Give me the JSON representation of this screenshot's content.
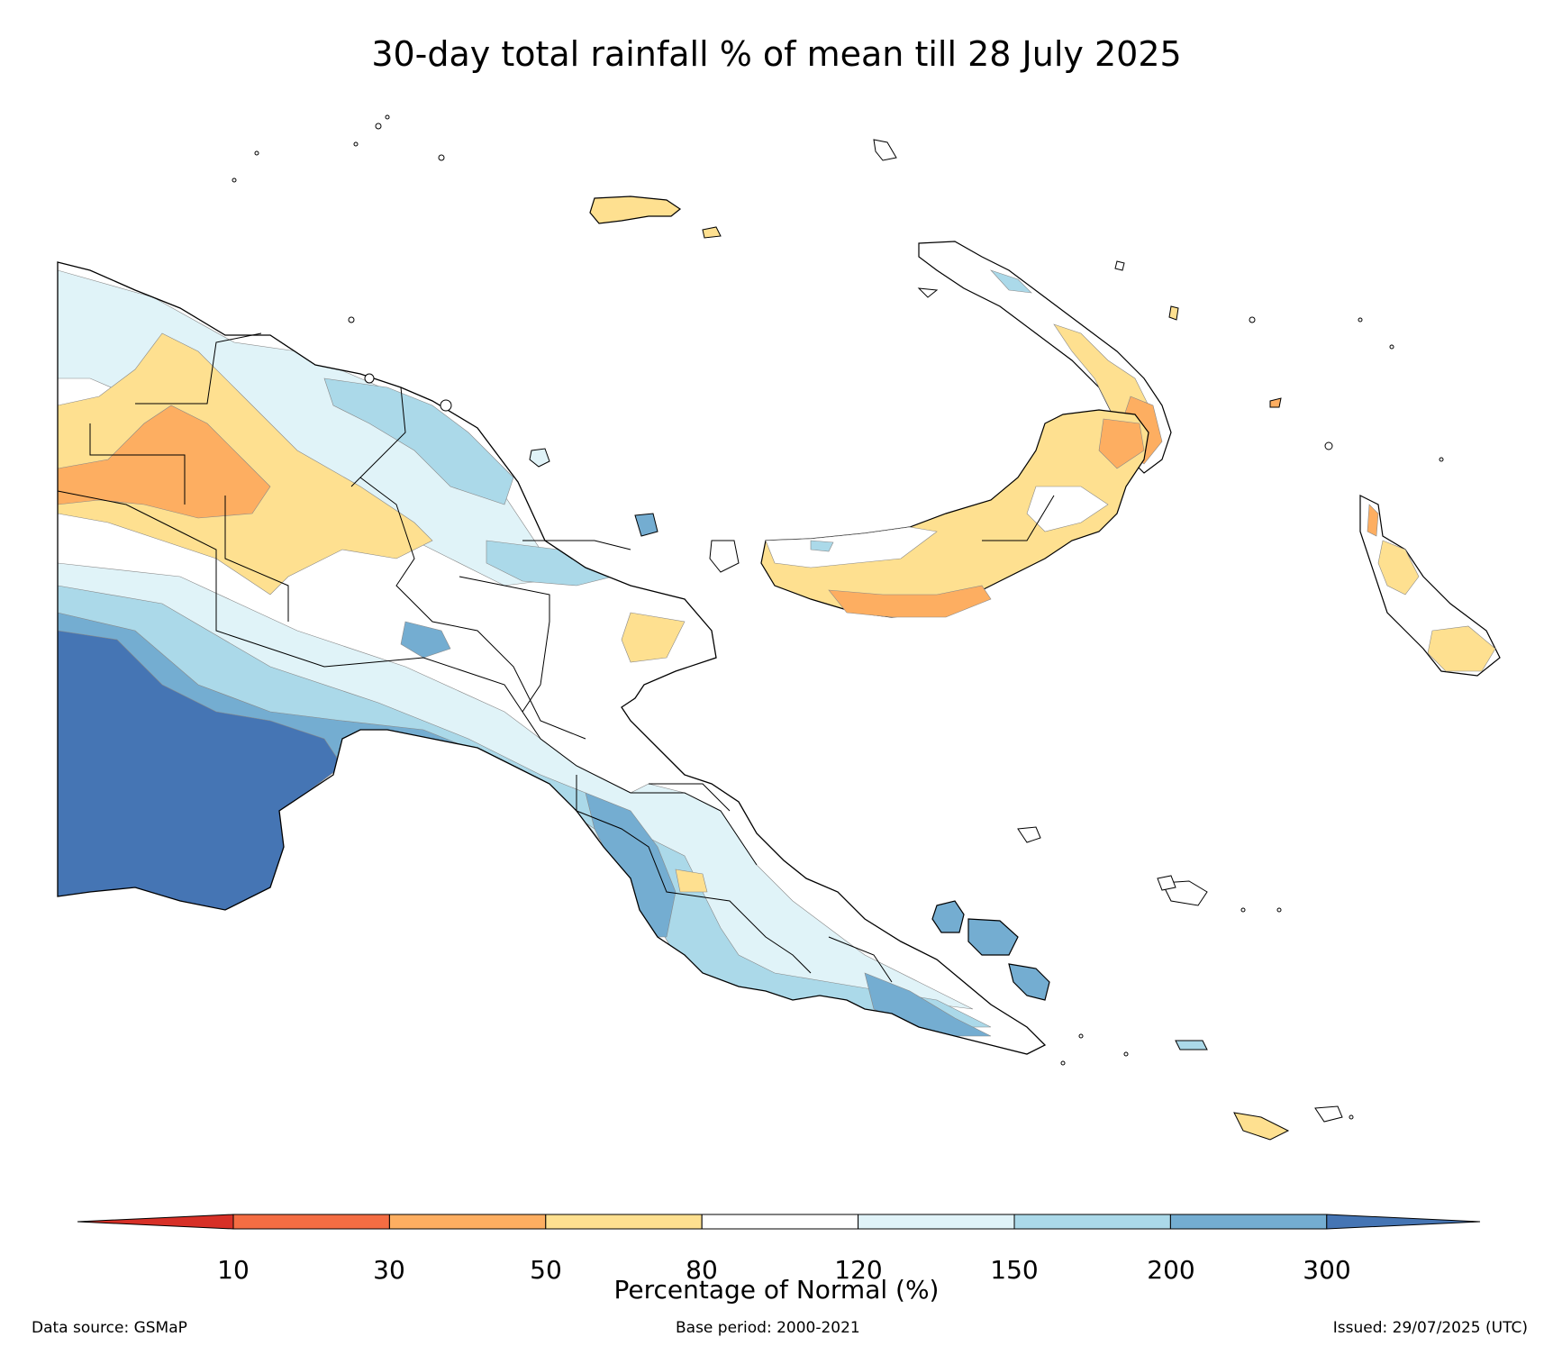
{
  "title": "30-day total rainfall % of mean till 28 July 2025",
  "colorbar": {
    "label": "Percentage of Normal (%)",
    "ticks": [
      "10",
      "30",
      "50",
      "80",
      "120",
      "150",
      "200",
      "300"
    ],
    "classes": [
      {
        "range": "<10",
        "color": "#d73027"
      },
      {
        "range": "10-30",
        "color": "#f46d43"
      },
      {
        "range": "30-50",
        "color": "#fdae61"
      },
      {
        "range": "50-80",
        "color": "#fee090"
      },
      {
        "range": "80-120",
        "color": "#ffffff"
      },
      {
        "range": "120-150",
        "color": "#e0f3f8"
      },
      {
        "range": "150-200",
        "color": "#abd9e9"
      },
      {
        "range": "200-300",
        "color": "#74add1"
      },
      {
        "range": ">300",
        "color": "#4575b4"
      }
    ]
  },
  "footer": {
    "data_source": "Data source: GSMaP",
    "base_period": "Base period: 2000-2021",
    "issued": "Issued: 29/07/2025 (UTC)"
  },
  "colors": {
    "coast": "#000000",
    "boundary": "#000000"
  }
}
